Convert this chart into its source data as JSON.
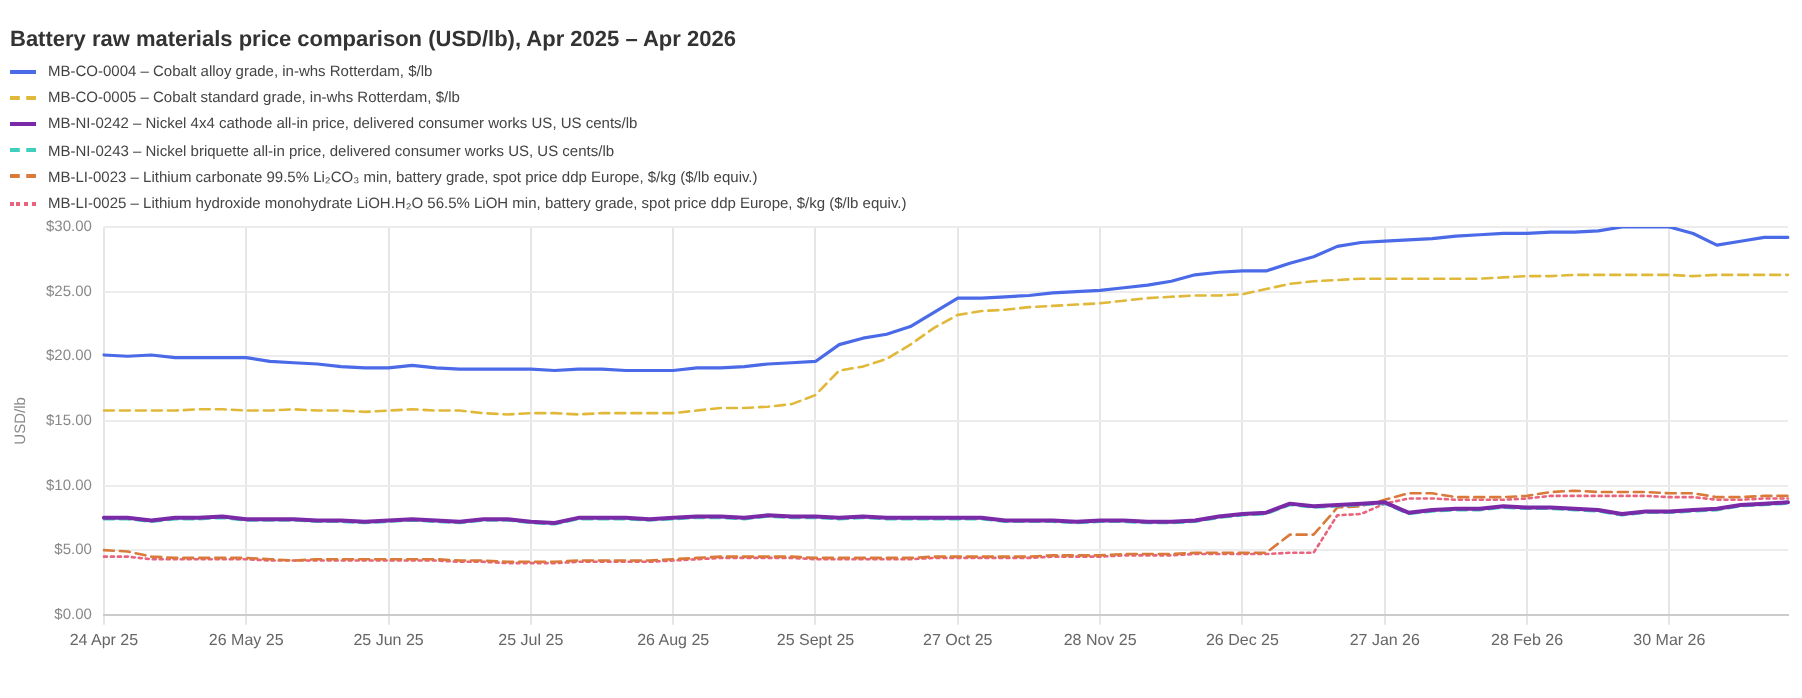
{
  "chart_data": {
    "type": "line",
    "title": "Battery raw materials price comparison (USD/lb), Apr 2025 – Apr 2026",
    "ylabel": "USD/lb",
    "categories": [
      "24 Apr 25",
      null,
      null,
      null,
      null,
      null,
      "26 May 25",
      null,
      null,
      null,
      null,
      null,
      "25 Jun 25",
      null,
      null,
      null,
      null,
      null,
      "25 Jul 25",
      null,
      null,
      null,
      null,
      null,
      "26 Aug 25",
      null,
      null,
      null,
      null,
      null,
      "25 Sept 25",
      null,
      null,
      null,
      null,
      null,
      "27 Oct 25",
      null,
      null,
      null,
      null,
      null,
      "28 Nov 25",
      null,
      null,
      null,
      null,
      null,
      "26 Dec 25",
      null,
      null,
      null,
      null,
      null,
      "27 Jan 26",
      null,
      null,
      null,
      null,
      null,
      "28 Feb 26",
      null,
      null,
      null,
      null,
      null,
      "30 Mar 26",
      null,
      null,
      null,
      null,
      null
    ],
    "series": [
      {
        "name": "MB-CO-0004 – Cobalt alloy grade, in-whs Rotterdam, $/lb",
        "color": "#4a6ae8",
        "line_style": "solid",
        "values": [
          20.1,
          20.0,
          20.1,
          19.9,
          19.9,
          19.9,
          19.9,
          19.6,
          19.5,
          19.4,
          19.2,
          19.1,
          19.1,
          19.3,
          19.1,
          19.0,
          19.0,
          19.0,
          19.0,
          18.9,
          19.0,
          19.0,
          18.9,
          18.9,
          18.9,
          19.1,
          19.1,
          19.2,
          19.4,
          19.5,
          19.6,
          20.9,
          21.4,
          21.7,
          22.3,
          23.4,
          24.5,
          24.5,
          24.6,
          24.7,
          24.9,
          25.0,
          25.1,
          25.3,
          25.5,
          25.8,
          26.3,
          26.5,
          26.6,
          26.6,
          27.2,
          27.7,
          28.5,
          28.8,
          28.9,
          29.0,
          29.1,
          29.3,
          29.4,
          29.5,
          29.5,
          29.6,
          29.6,
          29.7,
          30.0,
          30.0,
          30.0,
          29.5,
          28.6,
          28.9,
          29.2,
          29.2
        ]
      },
      {
        "name": "MB-CO-0005 – Cobalt standard grade, in-whs Rotterdam, $/lb",
        "color": "#e0b83a",
        "line_style": "dashed",
        "values": [
          15.8,
          15.8,
          15.8,
          15.8,
          15.9,
          15.9,
          15.8,
          15.8,
          15.9,
          15.8,
          15.8,
          15.7,
          15.8,
          15.9,
          15.8,
          15.8,
          15.6,
          15.5,
          15.6,
          15.6,
          15.5,
          15.6,
          15.6,
          15.6,
          15.6,
          15.8,
          16.0,
          16.0,
          16.1,
          16.3,
          17.0,
          18.9,
          19.2,
          19.8,
          20.9,
          22.2,
          23.2,
          23.5,
          23.6,
          23.8,
          23.9,
          24.0,
          24.1,
          24.3,
          24.5,
          24.6,
          24.7,
          24.7,
          24.8,
          25.2,
          25.6,
          25.8,
          25.9,
          26.0,
          26.0,
          26.0,
          26.0,
          26.0,
          26.0,
          26.1,
          26.2,
          26.2,
          26.3,
          26.3,
          26.3,
          26.3,
          26.3,
          26.2,
          26.3,
          26.3,
          26.3,
          26.3
        ]
      },
      {
        "name": "MB-NI-0242 – Nickel 4x4 cathode all-in price, delivered consumer works US, US cents/lb",
        "color": "#7a2aa6",
        "line_style": "solid",
        "values": [
          7.5,
          7.5,
          7.3,
          7.5,
          7.5,
          7.6,
          7.4,
          7.4,
          7.4,
          7.3,
          7.3,
          7.2,
          7.3,
          7.4,
          7.3,
          7.2,
          7.4,
          7.4,
          7.2,
          7.1,
          7.5,
          7.5,
          7.5,
          7.4,
          7.5,
          7.6,
          7.6,
          7.5,
          7.7,
          7.6,
          7.6,
          7.5,
          7.6,
          7.5,
          7.5,
          7.5,
          7.5,
          7.5,
          7.3,
          7.3,
          7.3,
          7.2,
          7.3,
          7.3,
          7.2,
          7.2,
          7.3,
          7.6,
          7.8,
          7.9,
          8.6,
          8.4,
          8.5,
          8.6,
          8.7,
          7.9,
          8.1,
          8.2,
          8.2,
          8.4,
          8.3,
          8.3,
          8.2,
          8.1,
          7.8,
          8.0,
          8.0,
          8.1,
          8.2,
          8.5,
          8.6,
          8.7
        ]
      },
      {
        "name": "MB-NI-0243 – Nickel briquette all-in price, delivered consumer works US, US cents/lb",
        "color": "#3fcfbf",
        "line_style": "dashed",
        "values": [
          7.4,
          7.4,
          7.2,
          7.4,
          7.4,
          7.5,
          7.3,
          7.3,
          7.3,
          7.2,
          7.2,
          7.1,
          7.2,
          7.3,
          7.2,
          7.1,
          7.3,
          7.3,
          7.1,
          7.0,
          7.4,
          7.4,
          7.4,
          7.3,
          7.4,
          7.5,
          7.5,
          7.4,
          7.6,
          7.5,
          7.5,
          7.4,
          7.5,
          7.4,
          7.4,
          7.4,
          7.4,
          7.4,
          7.2,
          7.2,
          7.2,
          7.1,
          7.2,
          7.2,
          7.1,
          7.1,
          7.2,
          7.5,
          7.7,
          7.8,
          8.5,
          8.3,
          8.4,
          8.5,
          8.6,
          7.8,
          8.0,
          8.1,
          8.1,
          8.3,
          8.2,
          8.2,
          8.1,
          8.0,
          7.7,
          7.9,
          7.9,
          8.0,
          8.1,
          8.4,
          8.5,
          8.6
        ]
      },
      {
        "name": "MB-LI-0023 – Lithium carbonate 99.5% Li₂CO₃ min, battery grade, spot price ddp Europe, $/kg ($/lb equiv.)",
        "color": "#d97a3a",
        "line_style": "dashed",
        "values": [
          5.0,
          4.9,
          4.5,
          4.4,
          4.4,
          4.4,
          4.4,
          4.3,
          4.2,
          4.3,
          4.3,
          4.3,
          4.3,
          4.3,
          4.3,
          4.2,
          4.2,
          4.1,
          4.1,
          4.1,
          4.2,
          4.2,
          4.2,
          4.2,
          4.3,
          4.4,
          4.5,
          4.5,
          4.5,
          4.5,
          4.4,
          4.4,
          4.4,
          4.4,
          4.4,
          4.5,
          4.5,
          4.5,
          4.5,
          4.5,
          4.6,
          4.6,
          4.6,
          4.7,
          4.7,
          4.7,
          4.8,
          4.8,
          4.8,
          4.8,
          6.2,
          6.2,
          8.3,
          8.4,
          8.9,
          9.4,
          9.4,
          9.1,
          9.1,
          9.1,
          9.2,
          9.5,
          9.6,
          9.5,
          9.5,
          9.5,
          9.4,
          9.4,
          9.1,
          9.1,
          9.2,
          9.2
        ]
      },
      {
        "name": "MB-LI-0025 – Lithium hydroxide monohydrate LiOH.H₂O 56.5% LiOH min, battery grade, spot price ddp Europe, $/kg ($/lb equiv.)",
        "color": "#e8637c",
        "line_style": "dotted",
        "values": [
          4.5,
          4.5,
          4.3,
          4.3,
          4.3,
          4.3,
          4.3,
          4.2,
          4.2,
          4.2,
          4.2,
          4.2,
          4.2,
          4.2,
          4.2,
          4.1,
          4.1,
          4.0,
          4.0,
          4.0,
          4.1,
          4.1,
          4.1,
          4.1,
          4.2,
          4.3,
          4.4,
          4.4,
          4.4,
          4.4,
          4.3,
          4.3,
          4.3,
          4.3,
          4.3,
          4.4,
          4.4,
          4.4,
          4.4,
          4.4,
          4.5,
          4.5,
          4.5,
          4.6,
          4.6,
          4.6,
          4.7,
          4.7,
          4.7,
          4.7,
          4.8,
          4.8,
          7.7,
          7.8,
          8.6,
          9.0,
          9.0,
          8.9,
          8.9,
          8.9,
          9.0,
          9.2,
          9.2,
          9.2,
          9.2,
          9.2,
          9.1,
          9.1,
          8.9,
          8.9,
          9.0,
          9.0
        ]
      }
    ],
    "ylim": [
      0,
      30
    ],
    "yticks": [
      {
        "value": 0,
        "label": "$0.00"
      },
      {
        "value": 5,
        "label": "$5.00"
      },
      {
        "value": 10,
        "label": "$10.00"
      },
      {
        "value": 15,
        "label": "$15.00"
      },
      {
        "value": 20,
        "label": "$20.00"
      },
      {
        "value": 25,
        "label": "$25.00"
      },
      {
        "value": 30,
        "label": "$30.00"
      }
    ],
    "grid": true,
    "legend": "top left"
  }
}
